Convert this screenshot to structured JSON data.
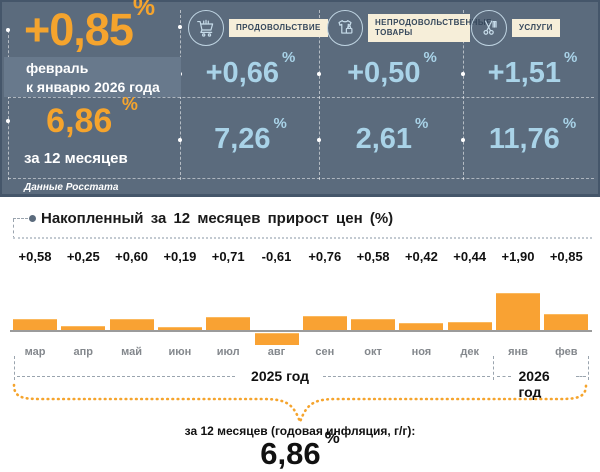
{
  "colors": {
    "panel_bg": "#5B6B7D",
    "panel_band": "#68798C",
    "accent_orange": "#F5A42D",
    "bar_orange": "#F9A233",
    "value_blue": "#A9D3E8",
    "tag_cream": "#F6EED9"
  },
  "panel": {
    "headline_value": "+0,85",
    "headline_unit": "%",
    "period_line1": "февраль",
    "period_line2": "к январю 2026 года",
    "annual_value": "6,86",
    "annual_unit": "%",
    "annual_label": "за 12 месяцев",
    "source": "Данные Росстата",
    "categories": [
      {
        "icon": "cart-icon",
        "label": "ПРОДОВОЛЬСТВИЕ",
        "month_value": "+0,66",
        "year_value": "7,26",
        "unit": "%"
      },
      {
        "icon": "clothes-icon",
        "label": "НЕПРОДОВОЛЬСТВЕННЫЕ ТОВАРЫ",
        "month_value": "+0,50",
        "year_value": "2,61",
        "unit": "%"
      },
      {
        "icon": "scissors-icon",
        "label": "УСЛУГИ",
        "month_value": "+1,51",
        "year_value": "11,76",
        "unit": "%"
      }
    ]
  },
  "chart_data": {
    "type": "bar",
    "title": "Накопленный за 12 месяцев прирост цен (%)",
    "categories": [
      "мар",
      "апр",
      "май",
      "июн",
      "июл",
      "авг",
      "сен",
      "окт",
      "ноя",
      "дек",
      "янв",
      "фев"
    ],
    "values": [
      0.58,
      0.25,
      0.6,
      0.19,
      0.71,
      -0.61,
      0.76,
      0.58,
      0.42,
      0.44,
      1.9,
      0.85
    ],
    "value_labels": [
      "+0,58",
      "+0,25",
      "+0,60",
      "+0,19",
      "+0,71",
      "-0,61",
      "+0,76",
      "+0,58",
      "+0,42",
      "+0,44",
      "+1,90",
      "+0,85"
    ],
    "xlabel": "",
    "ylabel": "",
    "ylim": [
      -0.7,
      2.0
    ],
    "grid": false,
    "legend": "none",
    "bar_color": "#F9A233",
    "year_groups": [
      {
        "label": "2025 год",
        "months": [
          "мар",
          "апр",
          "май",
          "июн",
          "июл",
          "авг",
          "сен",
          "окт",
          "ноя",
          "дек"
        ]
      },
      {
        "label": "2026 год",
        "months": [
          "янв",
          "фев"
        ]
      }
    ]
  },
  "footer": {
    "caption": "за 12 месяцев (годовая инфляция, г/г):",
    "total_value": "6,86",
    "total_unit": "%"
  }
}
